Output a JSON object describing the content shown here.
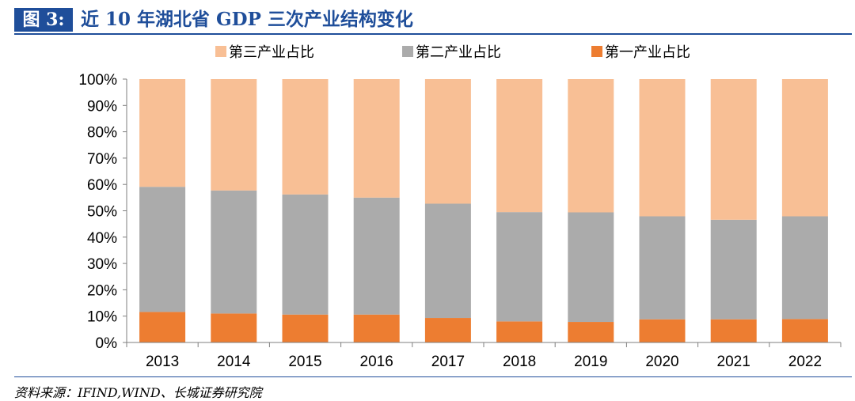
{
  "figure": {
    "label": "图 3:",
    "title": "近 10 年湖北省 GDP 三次产业结构变化"
  },
  "source": "资料来源：IFIND,WIND、长城证券研究院",
  "colors": {
    "tertiary": "#F8BF95",
    "secondary": "#ABABAB",
    "primary": "#ED7D31",
    "axis": "#7f7f7f",
    "brand": "#1F4E9A"
  },
  "chart_data": {
    "type": "bar",
    "stacked": true,
    "categories": [
      "2013",
      "2014",
      "2015",
      "2016",
      "2017",
      "2018",
      "2019",
      "2020",
      "2021",
      "2022"
    ],
    "series": [
      {
        "name": "第一产业占比",
        "values": [
          11.6,
          11.0,
          10.6,
          10.6,
          9.3,
          8.0,
          7.8,
          8.8,
          8.8,
          8.9
        ]
      },
      {
        "name": "第二产业占比",
        "values": [
          47.5,
          46.7,
          45.6,
          44.4,
          43.4,
          41.5,
          41.6,
          39.1,
          37.8,
          39.0
        ]
      },
      {
        "name": "第三产业占比",
        "values": [
          40.9,
          42.3,
          43.8,
          45.0,
          47.3,
          50.5,
          50.6,
          52.1,
          53.4,
          52.1
        ]
      }
    ],
    "legend_order": [
      "第三产业占比",
      "第二产业占比",
      "第一产业占比"
    ],
    "yticks": [
      "0%",
      "10%",
      "20%",
      "30%",
      "40%",
      "50%",
      "60%",
      "70%",
      "80%",
      "90%",
      "100%"
    ],
    "ylim": [
      0,
      100
    ],
    "legend_position": "top",
    "grid": false
  }
}
